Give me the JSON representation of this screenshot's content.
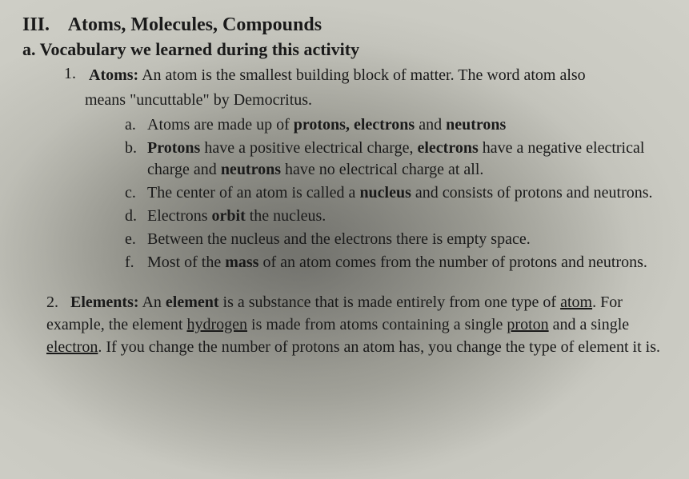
{
  "heading": {
    "roman": "III.",
    "title": "Atoms, Molecules, Compounds"
  },
  "subheading": {
    "letter": "a.",
    "title": "Vocabulary we learned during this activity"
  },
  "item1": {
    "number": "1.",
    "term": "Atoms:",
    "def_part1": " An atom is the smallest building block of matter.  The word atom also",
    "def_part2": "means \"uncuttable\" by Democritus."
  },
  "sublist": {
    "a": {
      "letter": "a.",
      "t1": "Atoms are made up of ",
      "b1": "protons, electrons",
      "t2": " and ",
      "b2": "neutrons"
    },
    "b": {
      "letter": "b.",
      "b1": "Protons",
      "t1": " have a positive electrical charge, ",
      "b2": "electrons",
      "t2": " have a negative electrical charge and ",
      "b3": "neutrons",
      "t3": " have no electrical charge at all."
    },
    "c": {
      "letter": "c.",
      "t1": "The center of an atom is called a ",
      "b1": "nucleus",
      "t2": " and consists of protons and neutrons."
    },
    "d": {
      "letter": "d.",
      "t1": "Electrons ",
      "b1": "orbit",
      "t2": " the nucleus."
    },
    "e": {
      "letter": "e.",
      "t1": "Between the nucleus and the electrons there is empty space."
    },
    "f": {
      "letter": "f.",
      "t1": "Most of the ",
      "b1": "mass",
      "t2": " of an atom comes from the number of protons and neutrons."
    }
  },
  "item2": {
    "number": "2.",
    "term": "Elements:",
    "t1": " An ",
    "b1": "element",
    "t2": " is a substance that is made entirely from one type of ",
    "u1": "atom",
    "t3": ". For example, the element ",
    "u2": "hydrogen",
    "t4": " is made from atoms containing a single ",
    "u3": "proton",
    "t5": " and a single ",
    "u4": "electron",
    "t6": ". If you change the number of protons an atom has, you change the type of element it is."
  },
  "style": {
    "body_fontsize": 20,
    "heading_fontsize": 24,
    "subheading_fontsize": 22,
    "text_color": "#1a1a1a",
    "bg_light": "#d0d0c8",
    "bg_shadow": "#8a8a85",
    "font_family": "Times New Roman"
  }
}
